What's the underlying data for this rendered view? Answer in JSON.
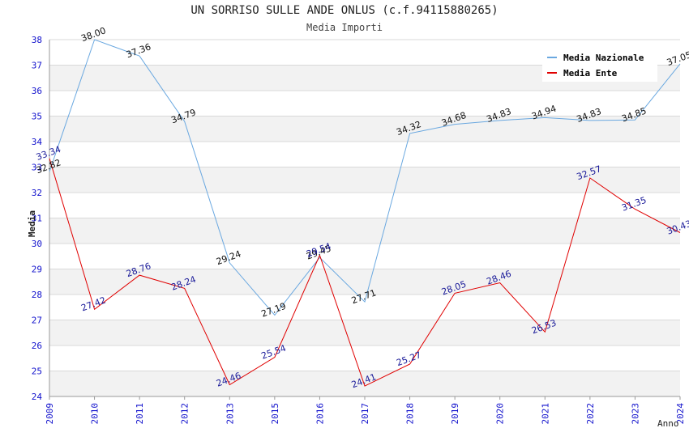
{
  "header": {
    "title": "UN SORRISO SULLE ANDE ONLUS (c.f.94115880265)",
    "subtitle": "Media Importi"
  },
  "colors": {
    "nazionale": "#6aa8e0",
    "ente": "#e00000",
    "band": "#f2f2f2",
    "grid": "#d9d9d9",
    "tick_text": "#1010cc",
    "label_ente": "#1a1a99",
    "label_nazionale": "#111111"
  },
  "chart_data": {
    "type": "line",
    "title": "UN SORRISO SULLE ANDE ONLUS (c.f.94115880265)",
    "subtitle": "Media Importi",
    "xlabel": "Anno",
    "ylabel": "Media",
    "ylim": [
      24,
      38
    ],
    "yticks": [
      "24",
      "25",
      "26",
      "27",
      "28",
      "29",
      "30",
      "31",
      "32",
      "33",
      "34",
      "35",
      "36",
      "37",
      "38"
    ],
    "categories": [
      "2009",
      "2010",
      "2011",
      "2012",
      "2013",
      "2015",
      "2016",
      "2017",
      "2018",
      "2019",
      "2020",
      "2021",
      "2022",
      "2023",
      "2024"
    ],
    "legend_position": "top-right",
    "series": [
      {
        "name": "Media Nazionale",
        "values": [
          32.82,
          38.0,
          37.36,
          34.79,
          29.24,
          27.19,
          29.45,
          27.71,
          34.32,
          34.68,
          34.83,
          34.94,
          34.83,
          34.85,
          37.05
        ],
        "labels": [
          "32.82",
          "38.00",
          "37.36",
          "34.79",
          "29.24",
          "27.19",
          "29.45",
          "27.71",
          "34.32",
          "34.68",
          "34.83",
          "34.94",
          "34.83",
          "34.85",
          "37.05"
        ]
      },
      {
        "name": "Media Ente",
        "values": [
          33.34,
          27.42,
          28.76,
          28.24,
          24.46,
          25.54,
          29.54,
          24.41,
          25.27,
          28.05,
          28.46,
          26.53,
          32.57,
          31.35,
          30.43
        ],
        "labels": [
          "33.34",
          "27.42",
          "28.76",
          "28.24",
          "24.46",
          "25.54",
          "29.54",
          "24.41",
          "25.27",
          "28.05",
          "28.46",
          "26.53",
          "32.57",
          "31.35",
          "30.43"
        ]
      }
    ]
  }
}
